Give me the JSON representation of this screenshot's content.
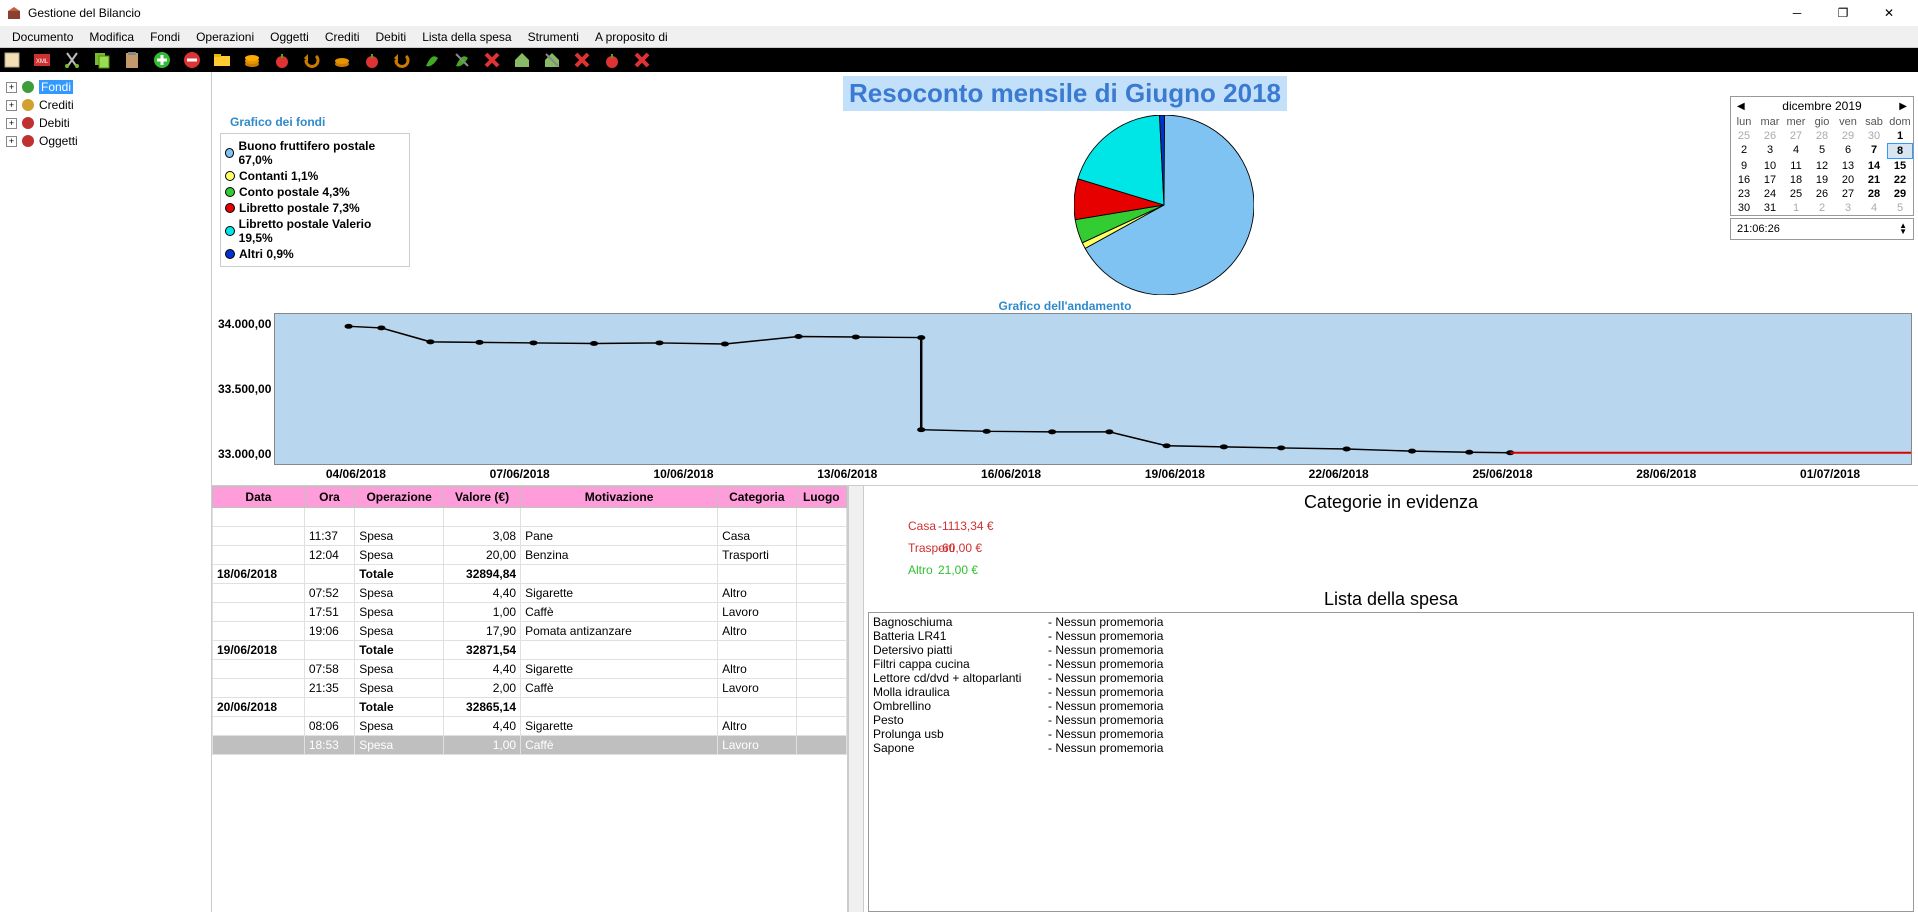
{
  "window": {
    "title": "Gestione del Bilancio"
  },
  "menu": [
    "Documento",
    "Modifica",
    "Fondi",
    "Operazioni",
    "Oggetti",
    "Crediti",
    "Debiti",
    "Lista della spesa",
    "Strumenti",
    "A proposito di"
  ],
  "tree": [
    {
      "label": "Fondi",
      "selected": true,
      "icon_color": "#3b9e3b"
    },
    {
      "label": "Crediti",
      "selected": false,
      "icon_color": "#d0a030"
    },
    {
      "label": "Debiti",
      "selected": false,
      "icon_color": "#c03030"
    },
    {
      "label": "Oggetti",
      "selected": false,
      "icon_color": "#c03030"
    }
  ],
  "report_title": "Resoconto mensile di Giugno 2018",
  "pie": {
    "title": "Grafico dei fondi",
    "slices": [
      {
        "label": "Buono fruttifero postale 67,0%",
        "color": "#7fc3f2",
        "value": 67.0
      },
      {
        "label": "Contanti 1,1%",
        "color": "#ffff66",
        "value": 1.1
      },
      {
        "label": "Conto postale 4,3%",
        "color": "#33cc33",
        "value": 4.3
      },
      {
        "label": "Libretto postale 7,3%",
        "color": "#e60000",
        "value": 7.3
      },
      {
        "label": "Libretto postale Valerio 19,5%",
        "color": "#00e6e6",
        "value": 19.5
      },
      {
        "label": "Altri 0,9%",
        "color": "#0033cc",
        "value": 0.9
      }
    ]
  },
  "line": {
    "title": "Grafico dell'andamento",
    "ylabels": [
      "34.000,00",
      "33.500,00",
      "33.000,00"
    ],
    "ylim": [
      32800,
      34200
    ],
    "xlabels": [
      "04/06/2018",
      "07/06/2018",
      "10/06/2018",
      "13/06/2018",
      "16/06/2018",
      "19/06/2018",
      "22/06/2018",
      "25/06/2018",
      "28/06/2018",
      "01/07/2018"
    ],
    "points": [
      [
        0.045,
        34085
      ],
      [
        0.065,
        34070
      ],
      [
        0.095,
        33940
      ],
      [
        0.125,
        33935
      ],
      [
        0.158,
        33930
      ],
      [
        0.195,
        33925
      ],
      [
        0.235,
        33930
      ],
      [
        0.275,
        33920
      ],
      [
        0.32,
        33990
      ],
      [
        0.355,
        33985
      ],
      [
        0.395,
        33980
      ],
      [
        0.395,
        33120
      ],
      [
        0.435,
        33105
      ],
      [
        0.475,
        33100
      ],
      [
        0.51,
        33100
      ],
      [
        0.545,
        32970
      ],
      [
        0.58,
        32960
      ],
      [
        0.615,
        32950
      ],
      [
        0.655,
        32940
      ],
      [
        0.695,
        32920
      ],
      [
        0.73,
        32910
      ],
      [
        0.755,
        32905
      ]
    ],
    "red_from": 0.755,
    "red_y": 32905,
    "bg_color": "#b8d6ee"
  },
  "table": {
    "headers": [
      "Data",
      "Ora",
      "Operazione",
      "Valore (€)",
      "Motivazione",
      "Categoria",
      "Luogo"
    ],
    "col_widths": [
      "62px",
      "34px",
      "60px",
      "52px",
      "133px",
      "53px",
      "34px"
    ],
    "rows": [
      {
        "cells": [
          "",
          "11:37",
          "Spesa",
          "3,08",
          "Pane",
          "Casa",
          ""
        ],
        "type": "normal"
      },
      {
        "cells": [
          "",
          "12:04",
          "Spesa",
          "20,00",
          "Benzina",
          "Trasporti",
          ""
        ],
        "type": "normal"
      },
      {
        "cells": [
          "18/06/2018",
          "",
          "Totale",
          "32894,84",
          "",
          "",
          ""
        ],
        "type": "total"
      },
      {
        "cells": [
          "",
          "07:52",
          "Spesa",
          "4,40",
          "Sigarette",
          "Altro",
          ""
        ],
        "type": "normal"
      },
      {
        "cells": [
          "",
          "17:51",
          "Spesa",
          "1,00",
          "Caffè",
          "Lavoro",
          ""
        ],
        "type": "normal"
      },
      {
        "cells": [
          "",
          "19:06",
          "Spesa",
          "17,90",
          "Pomata antizanzare",
          "Altro",
          ""
        ],
        "type": "normal"
      },
      {
        "cells": [
          "19/06/2018",
          "",
          "Totale",
          "32871,54",
          "",
          "",
          ""
        ],
        "type": "total"
      },
      {
        "cells": [
          "",
          "07:58",
          "Spesa",
          "4,40",
          "Sigarette",
          "Altro",
          ""
        ],
        "type": "normal"
      },
      {
        "cells": [
          "",
          "21:35",
          "Spesa",
          "2,00",
          "Caffè",
          "Lavoro",
          ""
        ],
        "type": "normal"
      },
      {
        "cells": [
          "20/06/2018",
          "",
          "Totale",
          "32865,14",
          "",
          "",
          ""
        ],
        "type": "total"
      },
      {
        "cells": [
          "",
          "08:06",
          "Spesa",
          "4,40",
          "Sigarette",
          "Altro",
          ""
        ],
        "type": "normal"
      },
      {
        "cells": [
          "",
          "18:53",
          "Spesa",
          "1,00",
          "Caffè",
          "Lavoro",
          ""
        ],
        "type": "sel"
      }
    ]
  },
  "categories": {
    "title": "Categorie in evidenza",
    "rows": [
      {
        "name": "Casa",
        "value": "-1113,34 €",
        "color": "#d03030"
      },
      {
        "name": "Trasporti",
        "value": "-60,00 €",
        "color": "#d03030"
      },
      {
        "name": "Altro",
        "value": "21,00 €",
        "color": "#30c030"
      }
    ]
  },
  "lista": {
    "title": "Lista della spesa",
    "items": [
      {
        "name": "Bagnoschiuma",
        "note": "- Nessun promemoria"
      },
      {
        "name": "Batteria LR41",
        "note": "- Nessun promemoria"
      },
      {
        "name": "Detersivo piatti",
        "note": "- Nessun promemoria"
      },
      {
        "name": "Filtri cappa cucina",
        "note": "- Nessun promemoria"
      },
      {
        "name": "Lettore cd/dvd + altoparlanti",
        "note": "- Nessun promemoria"
      },
      {
        "name": "Molla idraulica",
        "note": "- Nessun promemoria"
      },
      {
        "name": "Ombrellino",
        "note": "- Nessun promemoria"
      },
      {
        "name": "Pesto",
        "note": "- Nessun promemoria"
      },
      {
        "name": "Prolunga usb",
        "note": "- Nessun promemoria"
      },
      {
        "name": "Sapone",
        "note": "- Nessun promemoria"
      }
    ]
  },
  "calendar": {
    "title": "dicembre 2019",
    "day_headers": [
      "lun",
      "mar",
      "mer",
      "gio",
      "ven",
      "sab",
      "dom"
    ],
    "weeks": [
      [
        {
          "d": "25",
          "o": true
        },
        {
          "d": "26",
          "o": true
        },
        {
          "d": "27",
          "o": true
        },
        {
          "d": "28",
          "o": true
        },
        {
          "d": "29",
          "o": true
        },
        {
          "d": "30",
          "o": true
        },
        {
          "d": "1",
          "b": true
        }
      ],
      [
        {
          "d": "2"
        },
        {
          "d": "3"
        },
        {
          "d": "4"
        },
        {
          "d": "5"
        },
        {
          "d": "6"
        },
        {
          "d": "7",
          "b": true
        },
        {
          "d": "8",
          "b": true,
          "sel": true,
          "today": true
        }
      ],
      [
        {
          "d": "9"
        },
        {
          "d": "10"
        },
        {
          "d": "11"
        },
        {
          "d": "12"
        },
        {
          "d": "13"
        },
        {
          "d": "14",
          "b": true
        },
        {
          "d": "15",
          "b": true
        }
      ],
      [
        {
          "d": "16"
        },
        {
          "d": "17"
        },
        {
          "d": "18"
        },
        {
          "d": "19"
        },
        {
          "d": "20"
        },
        {
          "d": "21",
          "b": true
        },
        {
          "d": "22",
          "b": true
        }
      ],
      [
        {
          "d": "23"
        },
        {
          "d": "24"
        },
        {
          "d": "25"
        },
        {
          "d": "26"
        },
        {
          "d": "27"
        },
        {
          "d": "28",
          "b": true
        },
        {
          "d": "29",
          "b": true
        }
      ],
      [
        {
          "d": "30"
        },
        {
          "d": "31"
        },
        {
          "d": "1",
          "o": true
        },
        {
          "d": "2",
          "o": true
        },
        {
          "d": "3",
          "o": true
        },
        {
          "d": "4",
          "o": true
        },
        {
          "d": "5",
          "o": true
        }
      ]
    ]
  },
  "time": "21:06:26"
}
